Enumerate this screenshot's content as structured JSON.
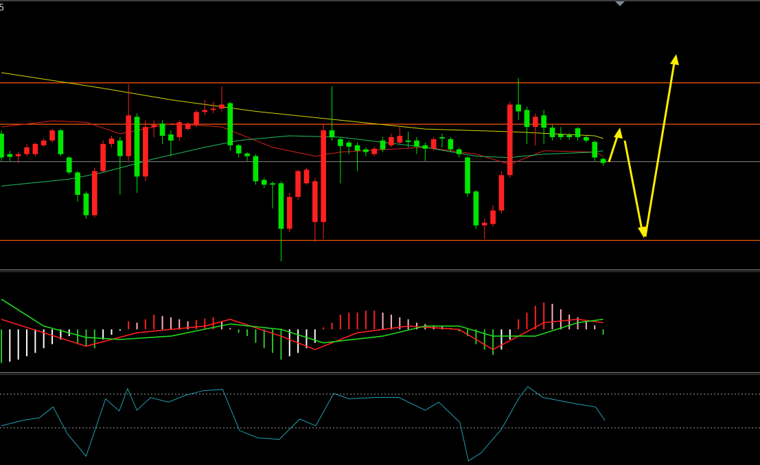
{
  "chart_data": [
    {
      "type": "candlestick",
      "label": "5",
      "xlim": [
        -0.16,
        89.5
      ],
      "ylim": [
        7,
        400
      ],
      "up_color": "#ff2020",
      "down_color": "#00e600",
      "open": [
        205,
        175,
        172,
        175,
        175,
        188,
        195,
        210,
        170,
        148,
        117,
        85,
        150,
        190,
        195,
        172,
        230,
        142,
        215,
        220,
        204,
        200,
        212,
        218,
        237,
        240,
        242,
        250,
        188,
        176,
        172,
        137,
        132,
        132,
        65,
        112,
        132,
        75,
        75,
        210,
        197,
        192,
        188,
        182,
        175,
        195,
        188,
        192,
        195,
        195,
        188,
        183,
        200,
        197,
        182,
        170,
        120,
        70,
        72,
        92,
        144,
        248,
        240,
        215,
        232,
        214,
        204,
        203,
        213,
        200,
        193,
        168
      ],
      "high": [
        210,
        180,
        178,
        190,
        192,
        198,
        212,
        212,
        172,
        150,
        120,
        155,
        195,
        202,
        200,
        278,
        235,
        225,
        225,
        225,
        210,
        225,
        222,
        240,
        255,
        252,
        275,
        252,
        190,
        178,
        175,
        140,
        135,
        135,
        118,
        152,
        155,
        140,
        220,
        275,
        200,
        195,
        192,
        185,
        186,
        200,
        205,
        215,
        208,
        200,
        192,
        200,
        205,
        200,
        185,
        172,
        122,
        80,
        100,
        150,
        252,
        287,
        245,
        235,
        240,
        218,
        215,
        206,
        215,
        202,
        195,
        170
      ],
      "low": [
        165,
        165,
        162,
        172,
        172,
        186,
        192,
        172,
        145,
        105,
        80,
        82,
        148,
        185,
        115,
        165,
        118,
        135,
        200,
        190,
        172,
        195,
        210,
        215,
        232,
        235,
        238,
        180,
        170,
        165,
        130,
        125,
        95,
        17,
        60,
        108,
        130,
        45,
        50,
        195,
        132,
        175,
        150,
        172,
        172,
        178,
        185,
        190,
        185,
        175,
        165,
        180,
        185,
        178,
        170,
        112,
        65,
        50,
        68,
        88,
        140,
        225,
        190,
        188,
        190,
        195,
        196,
        196,
        195,
        192,
        165,
        158
      ],
      "close": [
        170,
        171,
        175,
        185,
        190,
        195,
        210,
        175,
        148,
        115,
        85,
        150,
        190,
        198,
        172,
        232,
        142,
        215,
        218,
        202,
        195,
        222,
        220,
        237,
        240,
        242,
        248,
        188,
        176,
        172,
        135,
        130,
        130,
        65,
        112,
        150,
        152,
        135,
        210,
        200,
        187,
        186,
        180,
        178,
        183,
        182,
        200,
        202,
        193,
        186,
        183,
        197,
        198,
        182,
        175,
        117,
        70,
        74,
        92,
        144,
        248,
        238,
        215,
        230,
        214,
        200,
        200,
        200,
        200,
        195,
        170,
        162
      ],
      "lines": [
        {
          "color": "#d8d800",
          "x": [
            0,
            12,
            20,
            30,
            40,
            50,
            60,
            70,
            71
          ],
          "values": [
            295,
            272,
            255,
            238,
            225,
            212,
            208,
            202,
            198
          ]
        },
        {
          "color": "#e02020",
          "x": [
            0,
            6,
            10,
            14,
            20,
            26,
            32,
            37,
            40,
            50,
            56,
            60,
            64,
            70,
            71
          ],
          "values": [
            215,
            224,
            222,
            205,
            220,
            215,
            185,
            172,
            178,
            185,
            175,
            160,
            180,
            178,
            172
          ]
        },
        {
          "color": "#20c060",
          "x": [
            0,
            8,
            12,
            18,
            24,
            28,
            34,
            40,
            50,
            56,
            60,
            64,
            70,
            71
          ],
          "values": [
            128,
            138,
            148,
            168,
            185,
            195,
            202,
            200,
            185,
            172,
            170,
            175,
            178,
            180
          ]
        }
      ],
      "hlines": [
        {
          "value": 280,
          "color": "#ff5a00"
        },
        {
          "value": 219,
          "color": "#ff5a00"
        },
        {
          "value": 48,
          "color": "#ff5a00"
        },
        {
          "value": 164,
          "color": "#707070"
        }
      ]
    },
    {
      "type": "macd",
      "xlim": [
        -0.16,
        89.5
      ],
      "ylim": [
        -63,
        85
      ],
      "colors": {
        "pos_rising": "#ff2020",
        "pos_falling": "#ffb0c0",
        "neg_falling": "#30c030",
        "neg_rising": "#ffffff"
      },
      "values": [
        -50,
        -48,
        -45,
        -40,
        -35,
        -28,
        -22,
        -15,
        -10,
        -20,
        -25,
        -28,
        -15,
        -8,
        -2,
        12,
        10,
        15,
        22,
        20,
        18,
        15,
        12,
        14,
        16,
        18,
        12,
        2,
        -5,
        -10,
        -20,
        -28,
        -35,
        -45,
        -40,
        -35,
        -28,
        -20,
        3,
        10,
        22,
        25,
        25,
        28,
        28,
        25,
        22,
        18,
        15,
        10,
        8,
        6,
        4,
        2,
        -3,
        -10,
        -22,
        -30,
        -38,
        -30,
        -15,
        15,
        25,
        35,
        40,
        38,
        30,
        22,
        18,
        12,
        6,
        -8
      ],
      "lines": [
        {
          "color": "#ff2020",
          "x": [
            0,
            10,
            16,
            24,
            27,
            33,
            37,
            42,
            48,
            54,
            58,
            61,
            64,
            68,
            71
          ],
          "values": [
            15,
            -25,
            -5,
            5,
            15,
            -10,
            -30,
            -5,
            5,
            0,
            -30,
            -10,
            10,
            15,
            10
          ]
        },
        {
          "color": "#20dd20",
          "x": [
            0,
            5,
            10,
            14,
            20,
            27,
            33,
            38,
            45,
            50,
            54,
            58,
            63,
            68,
            71
          ],
          "values": [
            45,
            5,
            -12,
            -15,
            -10,
            8,
            0,
            -20,
            -10,
            5,
            5,
            -10,
            -10,
            10,
            15
          ]
        }
      ]
    },
    {
      "type": "oscillator",
      "xlim": [
        -0.16,
        89.5
      ],
      "ylim": [
        0,
        132
      ],
      "color": "#20a0b0",
      "levels": [
        104,
        54
      ],
      "x": [
        0,
        2.5,
        4.5,
        6.1,
        7.8,
        10,
        12.3,
        13.9,
        14.9,
        16,
        17.6,
        19.7,
        21.7,
        23.8,
        26.1,
        28.1,
        30.3,
        32.8,
        35.2,
        37.1,
        39.2,
        41,
        44.3,
        46.9,
        50,
        51.6,
        54.1,
        55.1,
        56.6,
        59,
        61.1,
        62.1,
        63.9,
        68,
        70.1,
        71.2
      ],
      "values": [
        57,
        65,
        69,
        85,
        45,
        12,
        97,
        79,
        112,
        80,
        99,
        92,
        102,
        109,
        111,
        50,
        39,
        37,
        67,
        57,
        105,
        97,
        99,
        99,
        80,
        92,
        62,
        5,
        17,
        52,
        99,
        115,
        99,
        89,
        85,
        65
      ]
    }
  ]
}
